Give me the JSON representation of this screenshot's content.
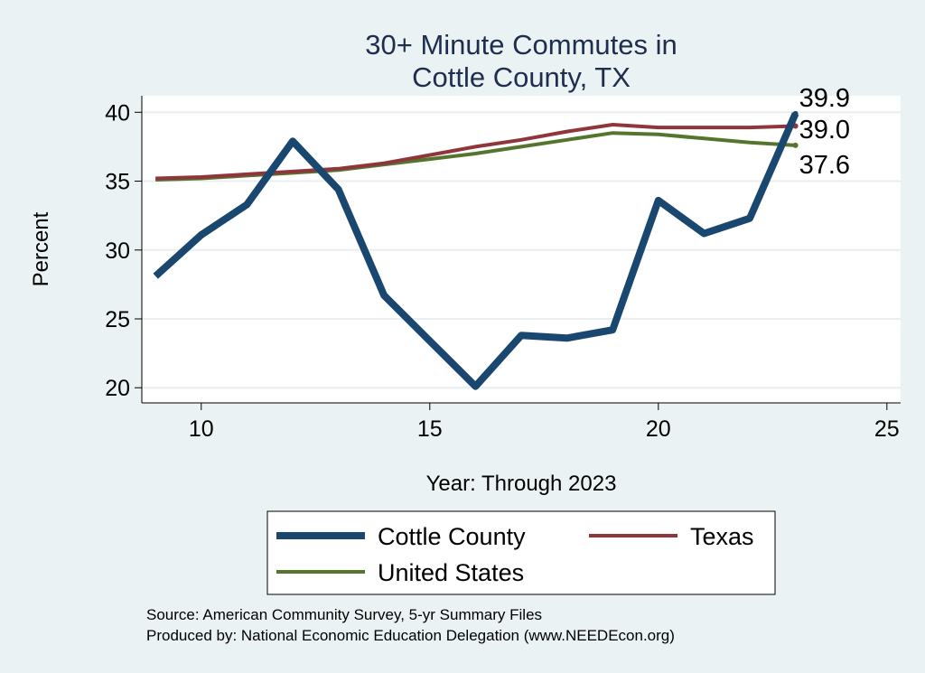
{
  "chart_data": {
    "type": "line",
    "title_lines": [
      "30+ Minute Commutes in",
      "Cottle County, TX"
    ],
    "xlabel": "Year: Through 2023",
    "ylabel": "Percent",
    "xlim": [
      8.7,
      25.3
    ],
    "ylim": [
      18.9,
      41.2
    ],
    "xticks": [
      10,
      15,
      20,
      25
    ],
    "yticks": [
      20,
      25,
      30,
      35,
      40
    ],
    "grid": true,
    "series": [
      {
        "name": "Cottle County",
        "color": "#1a476f",
        "x": [
          9,
          10,
          11,
          12,
          13,
          14,
          15,
          16,
          17,
          18,
          19,
          20,
          21,
          22,
          23
        ],
        "values": [
          28.1,
          31.1,
          33.3,
          37.9,
          34.4,
          26.7,
          23.4,
          20.1,
          23.8,
          23.6,
          24.2,
          33.6,
          31.2,
          32.3,
          39.9
        ],
        "end_label": "39.9"
      },
      {
        "name": "Texas",
        "color": "#90353b",
        "x": [
          9,
          10,
          11,
          12,
          13,
          14,
          15,
          16,
          17,
          18,
          19,
          20,
          21,
          22,
          23
        ],
        "values": [
          35.2,
          35.3,
          35.5,
          35.7,
          35.9,
          36.3,
          36.9,
          37.5,
          38.0,
          38.6,
          39.1,
          38.9,
          38.9,
          38.9,
          39.0
        ],
        "end_label": "39.0"
      },
      {
        "name": "United States",
        "color": "#55752f",
        "x": [
          9,
          10,
          11,
          12,
          13,
          14,
          15,
          16,
          17,
          18,
          19,
          20,
          21,
          22,
          23
        ],
        "values": [
          35.1,
          35.2,
          35.4,
          35.6,
          35.8,
          36.2,
          36.6,
          37.0,
          37.5,
          38.0,
          38.5,
          38.4,
          38.1,
          37.8,
          37.6
        ],
        "end_label": "37.6"
      }
    ],
    "legend": {
      "placement": "bottom",
      "entries": [
        "Cottle County",
        "Texas",
        "United States"
      ]
    },
    "notes": [
      "Source: American Community Survey, 5-yr Summary Files",
      "Produced by: National Economic Education Delegation (www.NEEDEcon.org)"
    ]
  }
}
